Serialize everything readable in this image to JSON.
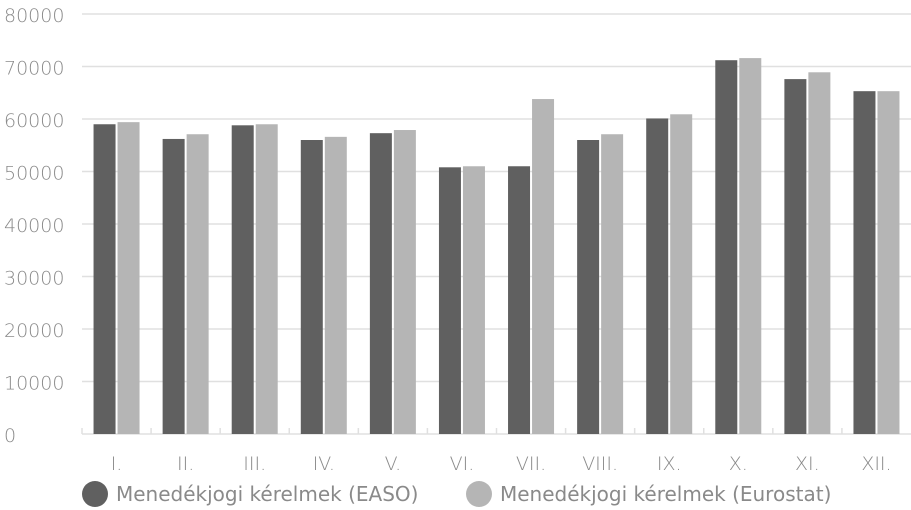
{
  "colors": {
    "easo": "#606060",
    "eurostat": "#b5b5b5",
    "grid": "#e0e0e0",
    "text": "#8a8a8a"
  },
  "chart_data": {
    "type": "bar",
    "categories": [
      "I.",
      "II.",
      "III.",
      "IV.",
      "V.",
      "VI.",
      "VII.",
      "VIII.",
      "IX.",
      "X.",
      "XI.",
      "XII."
    ],
    "series": [
      {
        "name": "Menedékjogi kérelmek (EASO)",
        "values": [
          59000,
          56200,
          58800,
          56000,
          57300,
          50800,
          51000,
          56000,
          60100,
          71200,
          67600,
          65300
        ]
      },
      {
        "name": "Menedékjogi kérelmek (Eurostat)",
        "values": [
          59400,
          57100,
          59000,
          56600,
          57900,
          51000,
          63800,
          57100,
          60900,
          71600,
          68900,
          65300
        ]
      }
    ],
    "yticks": [
      0,
      10000,
      20000,
      30000,
      40000,
      50000,
      60000,
      70000,
      80000
    ],
    "ylim": [
      0,
      80000
    ],
    "grid": true,
    "legend_position": "bottom-left"
  }
}
